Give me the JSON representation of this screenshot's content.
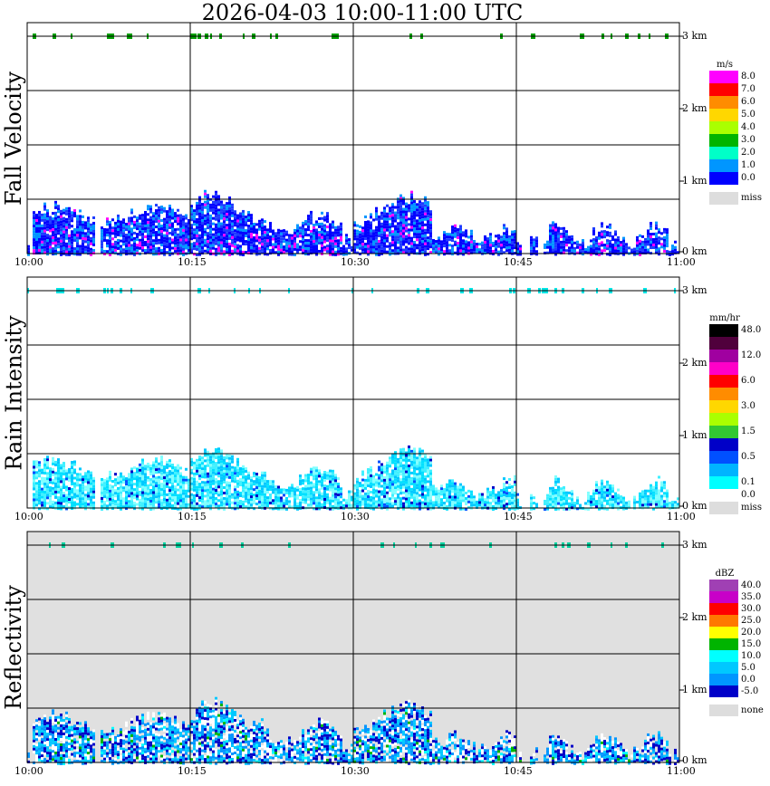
{
  "title": "2026-04-03  10:00-11:00 UTC",
  "chart_data": [
    {
      "type": "heatmap",
      "panel_title": "Fall Velocity",
      "units": "m/s",
      "background": "#ffffff",
      "x_ticks": [
        "10:00",
        "10:15",
        "10:30",
        "10:45",
        "11:00"
      ],
      "y_ticks": [
        "0 km",
        "1 km",
        "2 km",
        "3 km"
      ],
      "legend": [
        {
          "color": "#ff00ff",
          "label": "8.0"
        },
        {
          "color": "#ff0000",
          "label": "7.0"
        },
        {
          "color": "#ff8c00",
          "label": "6.0"
        },
        {
          "color": "#ffd700",
          "label": "5.0"
        },
        {
          "color": "#aaff00",
          "label": "4.0"
        },
        {
          "color": "#00b400",
          "label": "3.0"
        },
        {
          "color": "#00ffc8",
          "label": "2.0"
        },
        {
          "color": "#0096ff",
          "label": "1.0"
        },
        {
          "color": "#0000ff",
          "label": "0.0"
        },
        {
          "color": "#dddddd",
          "label": "miss",
          "gap": true
        }
      ],
      "top_marker_color": "#00a000",
      "fill_colors": [
        "#0000ff",
        "#0096ff",
        "#0000ff",
        "#1e3cff"
      ],
      "accent_colors": [
        "#ff00ff"
      ]
    },
    {
      "type": "heatmap",
      "panel_title": "Rain Intensity",
      "units": "mm/hr",
      "background": "#ffffff",
      "x_ticks": [
        "10:00",
        "10:15",
        "10:30",
        "10:45",
        "11:00"
      ],
      "y_ticks": [
        "0 km",
        "1 km",
        "2 km",
        "3 km"
      ],
      "legend": [
        {
          "color": "#000000",
          "label": "48.0"
        },
        {
          "color": "#50003c",
          "label": ""
        },
        {
          "color": "#a000a0",
          "label": "12.0"
        },
        {
          "color": "#ff00c8",
          "label": ""
        },
        {
          "color": "#ff0000",
          "label": "6.0"
        },
        {
          "color": "#ff8c00",
          "label": ""
        },
        {
          "color": "#ffd700",
          "label": "3.0"
        },
        {
          "color": "#aaff00",
          "label": ""
        },
        {
          "color": "#32c832",
          "label": "1.5"
        },
        {
          "color": "#0000c8",
          "label": ""
        },
        {
          "color": "#0050ff",
          "label": "0.5"
        },
        {
          "color": "#00b4ff",
          "label": ""
        },
        {
          "color": "#00ffff",
          "label": "0.1"
        },
        {
          "color": "#ffffff",
          "label": "0.0"
        },
        {
          "color": "#dddddd",
          "label": "miss"
        }
      ],
      "top_marker_color": "#00e6e6",
      "fill_colors": [
        "#80ffff",
        "#40f0ff",
        "#00e0ff",
        "#00c8ff"
      ],
      "accent_colors": [
        "#0050ff",
        "#0000c8"
      ]
    },
    {
      "type": "heatmap",
      "panel_title": "Reflectivity",
      "units": "dBZ",
      "background": "#e0e0e0",
      "x_ticks": [
        "10:00",
        "10:15",
        "10:30",
        "10:45",
        "11:00"
      ],
      "y_ticks": [
        "0 km",
        "1 km",
        "2 km",
        "3 km"
      ],
      "legend": [
        {
          "color": "#a040b4",
          "label": "40.0"
        },
        {
          "color": "#c800c8",
          "label": "35.0"
        },
        {
          "color": "#ff0000",
          "label": "30.0"
        },
        {
          "color": "#ff7800",
          "label": "25.0"
        },
        {
          "color": "#ffff00",
          "label": "20.0"
        },
        {
          "color": "#00b400",
          "label": "15.0"
        },
        {
          "color": "#00ffff",
          "label": "10.0"
        },
        {
          "color": "#00c8ff",
          "label": "5.0"
        },
        {
          "color": "#0096ff",
          "label": "0.0"
        },
        {
          "color": "#0000c8",
          "label": "-5.0"
        },
        {
          "color": "#dddddd",
          "label": "none",
          "gap": true
        }
      ],
      "top_marker_color": "#00d2a0",
      "fill_colors": [
        "#ffffff",
        "#0000c8",
        "#00c8ff",
        "#0096ff"
      ],
      "accent_colors": [
        "#00b400",
        "#00ffff"
      ]
    }
  ]
}
